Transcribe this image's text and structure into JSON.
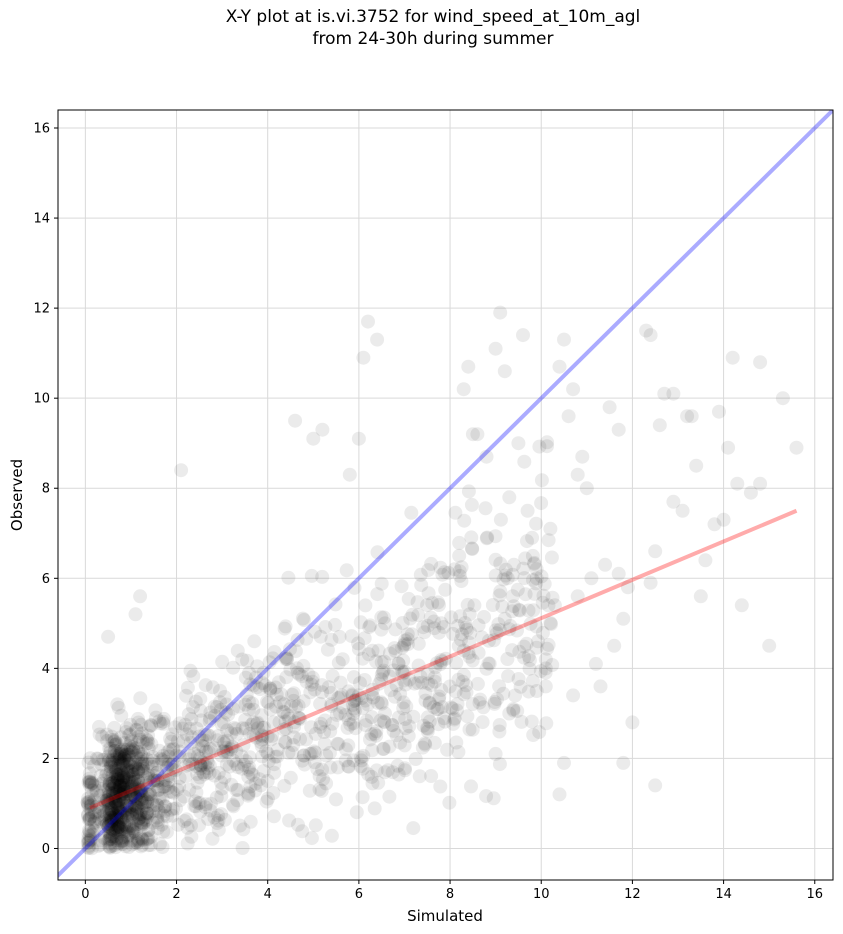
{
  "chart_data": {
    "type": "scatter",
    "title": "X-Y plot at is.vi.3752 for wind_speed_at_10m_agl",
    "subtitle": "from 24-30h during summer",
    "xlabel": "Simulated",
    "ylabel": "Observed",
    "xlim": [
      -0.6,
      16.4
    ],
    "ylim": [
      -0.7,
      16.4
    ],
    "x_ticks": [
      0,
      2,
      4,
      6,
      8,
      10,
      12,
      14,
      16
    ],
    "y_ticks": [
      0,
      2,
      4,
      6,
      8,
      10,
      12,
      14,
      16
    ],
    "grid": true,
    "points_color": "#000000",
    "points_alpha": 0.08,
    "one_to_one_line": {
      "color": "#0000ff",
      "alpha": 0.33,
      "from": [
        -0.7,
        -0.7
      ],
      "to": [
        16.4,
        16.4
      ]
    },
    "fit_line": {
      "color": "#ff0000",
      "alpha": 0.33,
      "from": [
        0.1,
        0.9
      ],
      "to": [
        15.6,
        7.5
      ]
    },
    "point_count_estimate": 1600,
    "x": [
      15.3,
      15.6,
      14.8,
      14.2,
      13.9,
      14.0,
      13.4,
      15.0,
      13.5,
      14.4,
      14.3,
      14.1,
      14.6,
      12.9,
      12.6,
      12.7,
      13.2,
      12.4,
      12.3,
      12.5,
      12.0,
      11.5,
      11.4,
      11.9,
      11.7,
      11.8,
      11.6,
      11.3,
      11.2,
      11.1,
      10.5,
      10.4,
      10.7,
      10.6,
      10.9,
      10.8,
      10.8,
      10.7,
      10.5,
      10.4,
      10.1,
      10.1,
      10.3,
      9.4,
      9.3,
      9.2,
      9.1,
      9.0,
      9.6,
      9.5,
      9.7,
      9.9,
      9.8,
      8.5,
      8.4,
      8.3,
      8.6,
      8.8,
      8.2,
      8.1,
      6.2,
      6.4,
      6.1,
      6.0,
      5.8,
      5.2,
      5.0,
      4.6,
      2.1,
      1.2,
      1.1,
      0.5,
      0.7,
      0.3,
      9.2,
      9.0,
      11.7,
      12.9,
      13.3,
      13.6,
      14.8,
      13.8,
      12.4,
      10.1,
      10.2,
      11.0,
      12.5,
      13.1,
      11.8
    ],
    "y": [
      10.0,
      8.9,
      10.8,
      10.9,
      9.7,
      7.3,
      8.5,
      4.5,
      5.6,
      5.4,
      8.1,
      8.9,
      7.9,
      7.7,
      9.4,
      10.1,
      9.6,
      11.4,
      11.5,
      1.4,
      2.8,
      9.8,
      6.3,
      5.8,
      6.1,
      5.1,
      4.5,
      3.6,
      4.1,
      6.0,
      11.3,
      10.7,
      10.2,
      9.6,
      8.7,
      8.3,
      5.6,
      3.4,
      1.9,
      1.2,
      4.0,
      3.6,
      5.4,
      6.3,
      7.8,
      10.6,
      11.9,
      11.1,
      11.4,
      9.0,
      7.5,
      6.0,
      6.9,
      9.2,
      10.7,
      10.2,
      9.2,
      8.7,
      6.5,
      6.2,
      11.7,
      11.3,
      10.9,
      9.1,
      8.3,
      9.3,
      9.1,
      9.5,
      8.4,
      5.6,
      5.2,
      4.7,
      3.2,
      2.7,
      5.1,
      2.1,
      9.3,
      10.1,
      9.6,
      6.4,
      8.1,
      7.2,
      5.9,
      4.2,
      7.1,
      8.0,
      6.6,
      7.5,
      1.9
    ]
  }
}
